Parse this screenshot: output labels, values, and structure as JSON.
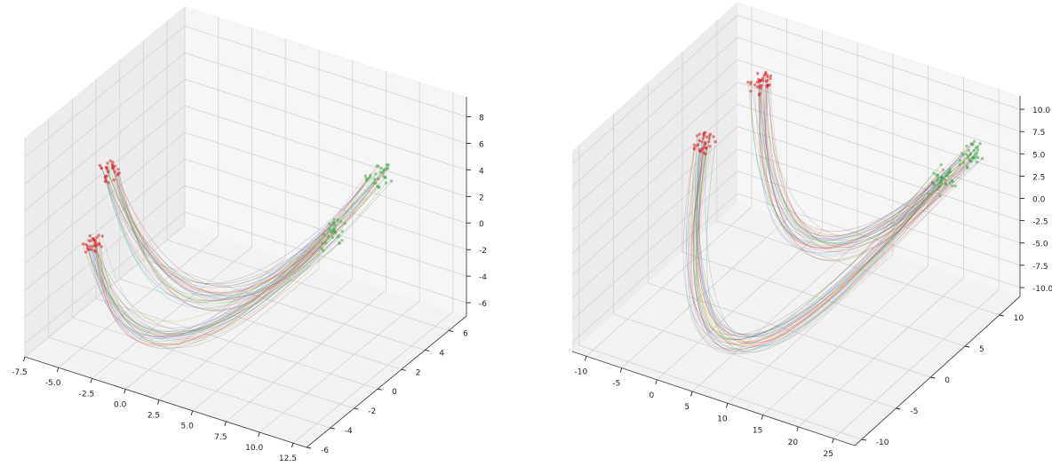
{
  "chart_data": [
    {
      "type": "line",
      "projection": "3d",
      "title": "",
      "xlabel": "",
      "ylabel": "",
      "zlabel": "",
      "xlim": [
        -7.5,
        13.5
      ],
      "ylim": [
        -6,
        7.5
      ],
      "zlim": [
        -7,
        9.5
      ],
      "xticks": [
        "-7.5",
        "-5.0",
        "-2.5",
        "0.0",
        "2.5",
        "5.0",
        "7.5",
        "10.0",
        "12.5"
      ],
      "xtick_values": [
        -7.5,
        -5.0,
        -2.5,
        0.0,
        2.5,
        5.0,
        7.5,
        10.0,
        12.5
      ],
      "yticks": [
        "-6",
        "-4",
        "-2",
        "0",
        "2",
        "4",
        "6"
      ],
      "ytick_values": [
        -6,
        -4,
        -2,
        0,
        2,
        4,
        6
      ],
      "zticks": [
        "-6",
        "-4",
        "-2",
        "0",
        "2",
        "4",
        "6",
        "8"
      ],
      "ztick_values": [
        -6,
        -4,
        -2,
        0,
        2,
        4,
        6,
        8
      ],
      "grid": true,
      "pane_color": "#f2f2f2",
      "start_marker_color": "#d62728",
      "end_marker_color": "#2ca02c",
      "trajectory_count": 60,
      "trajectory_alpha": 0.3,
      "bundles": [
        {
          "start": [
            -6,
            -2.0,
            -1.0
          ],
          "mid": [
            0.0,
            -2,
            -6.0
          ],
          "end": [
            8,
            2.5,
            1.0
          ]
        },
        {
          "start": [
            -3,
            -4.0,
            7.0
          ],
          "mid": [
            4.0,
            -3,
            -1.0
          ],
          "end": [
            10,
            4.0,
            5.0
          ]
        }
      ]
    },
    {
      "type": "line",
      "projection": "3d",
      "title": "",
      "xlabel": "",
      "ylabel": "",
      "zlabel": "",
      "xlim": [
        -12,
        28
      ],
      "ylim": [
        -11,
        13
      ],
      "zlim": [
        -11,
        11.5
      ],
      "xticks": [
        "-10",
        "-5",
        "0",
        "5",
        "10",
        "15",
        "20",
        "25"
      ],
      "xtick_values": [
        -10,
        -5,
        0,
        5,
        10,
        15,
        20,
        25
      ],
      "yticks": [
        "-10",
        "-5",
        "0",
        "5",
        "10"
      ],
      "ytick_values": [
        -10,
        -5,
        0,
        5,
        10
      ],
      "zticks": [
        "-10.0",
        "-7.5",
        "-5.0",
        "-2.5",
        "0.0",
        "2.5",
        "5.0",
        "7.5",
        "10.0"
      ],
      "ztick_values": [
        -10.0,
        -7.5,
        -5.0,
        -2.5,
        0.0,
        2.5,
        5.0,
        7.5,
        10.0
      ],
      "grid": true,
      "pane_color": "#f2f2f2",
      "start_marker_color": "#d62728",
      "end_marker_color": "#2ca02c",
      "trajectory_count": 70,
      "trajectory_alpha": 0.3,
      "bundles": [
        {
          "start": [
            -8,
            4,
            3.0
          ],
          "mid": [
            4,
            -4,
            -11.0
          ],
          "end": [
            22,
            8,
            4.0
          ]
        },
        {
          "start": [
            -4,
            8,
            8.0
          ],
          "mid": [
            10,
            2,
            -2.0
          ],
          "end": [
            24,
            10,
            6.0
          ]
        }
      ]
    }
  ]
}
